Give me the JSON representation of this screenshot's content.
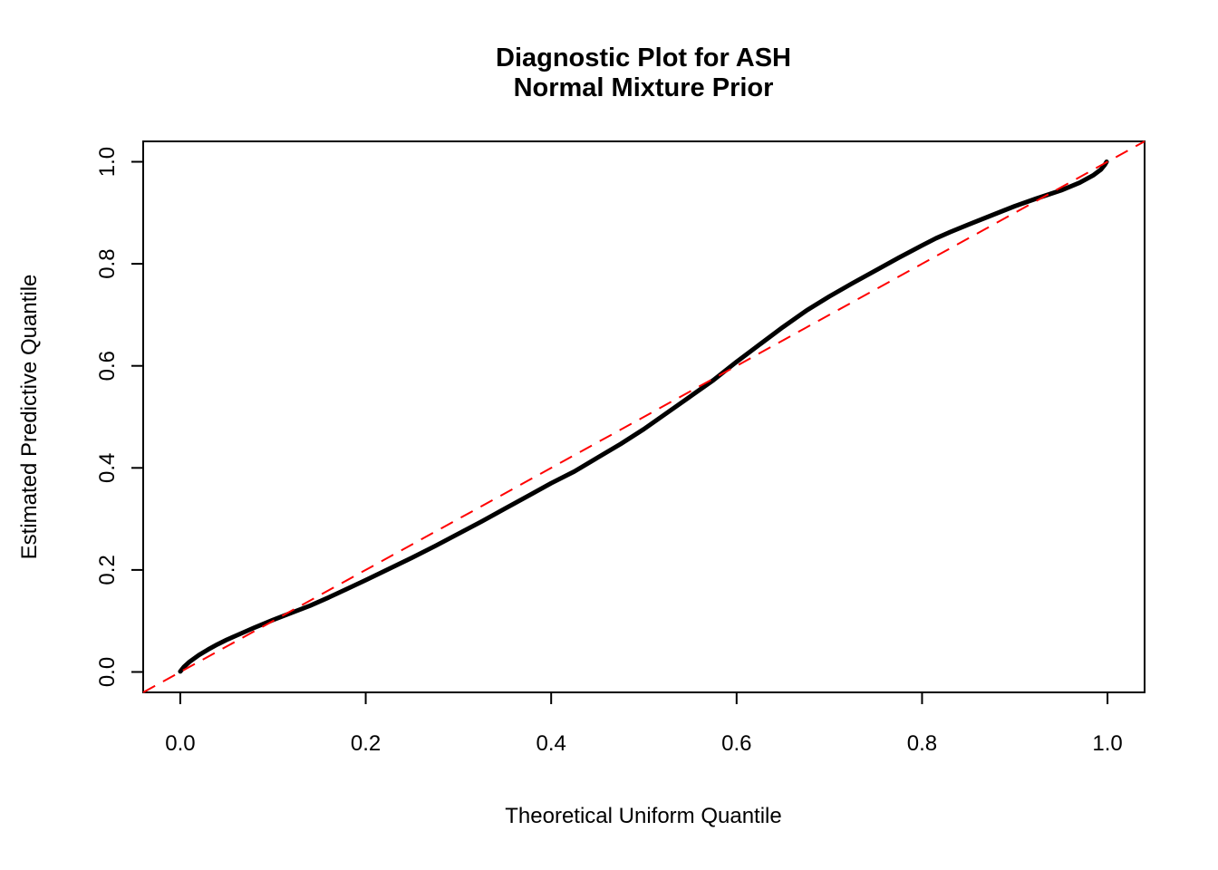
{
  "title": {
    "line1": "Diagnostic Plot for ASH",
    "line2": "Normal Mixture Prior"
  },
  "axes": {
    "xlabel": "Theoretical Uniform Quantile",
    "ylabel": "Estimated Predictive Quantile"
  },
  "chart_data": {
    "type": "line",
    "title_lines": [
      "Diagnostic Plot for ASH",
      "Normal Mixture Prior"
    ],
    "xlabel": "Theoretical Uniform Quantile",
    "ylabel": "Estimated Predictive Quantile",
    "xlim": [
      -0.04,
      1.04
    ],
    "ylim": [
      -0.04,
      1.04
    ],
    "x_ticks": {
      "values": [
        0.0,
        0.2,
        0.4,
        0.6,
        0.8,
        1.0
      ],
      "labels": [
        "0.0",
        "0.2",
        "0.4",
        "0.6",
        "0.8",
        "1.0"
      ]
    },
    "y_ticks": {
      "values": [
        0.0,
        0.2,
        0.4,
        0.6,
        0.8,
        1.0
      ],
      "labels": [
        "0.0",
        "0.2",
        "0.4",
        "0.6",
        "0.8",
        "1.0"
      ]
    },
    "grid": false,
    "legend": null,
    "colors": {
      "curve": "#000000",
      "reference_line": "#FF0000",
      "axis": "#000000",
      "background": "#FFFFFF"
    },
    "series": [
      {
        "name": "estimated-predictive-quantiles",
        "kind": "curve",
        "color": "#000000",
        "line_width": 5,
        "line_style": "solid",
        "points": [
          [
            0.0,
            0.001
          ],
          [
            0.004,
            0.01
          ],
          [
            0.01,
            0.02
          ],
          [
            0.02,
            0.033
          ],
          [
            0.03,
            0.044
          ],
          [
            0.04,
            0.054
          ],
          [
            0.05,
            0.063
          ],
          [
            0.06,
            0.071
          ],
          [
            0.08,
            0.087
          ],
          [
            0.1,
            0.102
          ],
          [
            0.12,
            0.116
          ],
          [
            0.14,
            0.13
          ],
          [
            0.16,
            0.146
          ],
          [
            0.18,
            0.163
          ],
          [
            0.2,
            0.18
          ],
          [
            0.225,
            0.202
          ],
          [
            0.25,
            0.224
          ],
          [
            0.275,
            0.247
          ],
          [
            0.3,
            0.271
          ],
          [
            0.325,
            0.295
          ],
          [
            0.35,
            0.32
          ],
          [
            0.375,
            0.345
          ],
          [
            0.4,
            0.37
          ],
          [
            0.425,
            0.393
          ],
          [
            0.45,
            0.42
          ],
          [
            0.475,
            0.447
          ],
          [
            0.5,
            0.476
          ],
          [
            0.525,
            0.508
          ],
          [
            0.55,
            0.54
          ],
          [
            0.575,
            0.572
          ],
          [
            0.6,
            0.608
          ],
          [
            0.625,
            0.642
          ],
          [
            0.65,
            0.676
          ],
          [
            0.675,
            0.708
          ],
          [
            0.7,
            0.736
          ],
          [
            0.725,
            0.762
          ],
          [
            0.75,
            0.787
          ],
          [
            0.775,
            0.812
          ],
          [
            0.8,
            0.836
          ],
          [
            0.815,
            0.85
          ],
          [
            0.83,
            0.862
          ],
          [
            0.85,
            0.877
          ],
          [
            0.875,
            0.895
          ],
          [
            0.9,
            0.913
          ],
          [
            0.925,
            0.929
          ],
          [
            0.95,
            0.944
          ],
          [
            0.97,
            0.959
          ],
          [
            0.985,
            0.974
          ],
          [
            0.993,
            0.985
          ],
          [
            0.997,
            0.994
          ],
          [
            0.999,
            1.0
          ]
        ]
      },
      {
        "name": "identity-reference-line",
        "kind": "abline",
        "intercept": 0,
        "slope": 1,
        "color": "#FF0000",
        "line_width": 2,
        "line_style": "dashed"
      }
    ]
  }
}
